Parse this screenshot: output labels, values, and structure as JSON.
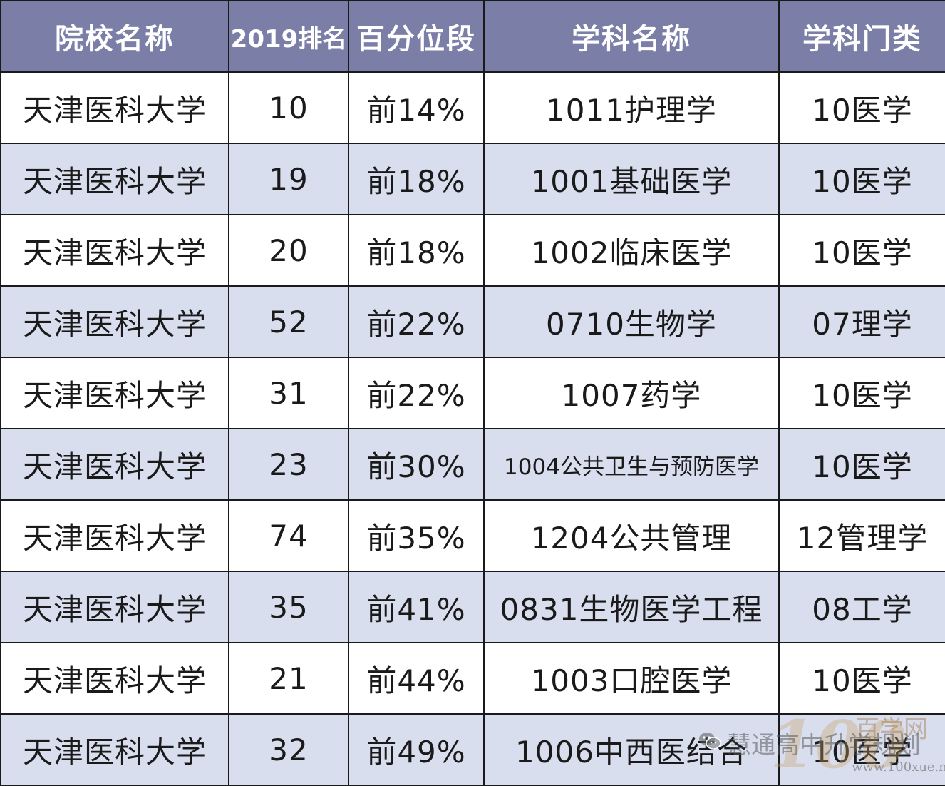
{
  "table": {
    "headers": [
      "院校名称",
      "2019排名",
      "百分位段",
      "学科名称",
      "学科门类"
    ],
    "rows": [
      [
        "天津医科大学",
        "10",
        "前14%",
        "1011护理学",
        "10医学"
      ],
      [
        "天津医科大学",
        "19",
        "前18%",
        "1001基础医学",
        "10医学"
      ],
      [
        "天津医科大学",
        "20",
        "前18%",
        "1002临床医学",
        "10医学"
      ],
      [
        "天津医科大学",
        "52",
        "前22%",
        "0710生物学",
        "07理学"
      ],
      [
        "天津医科大学",
        "31",
        "前22%",
        "1007药学",
        "10医学"
      ],
      [
        "天津医科大学",
        "23",
        "前30%",
        "1004公共卫生与预防医学",
        "10医学"
      ],
      [
        "天津医科大学",
        "74",
        "前35%",
        "1204公共管理",
        "12管理学"
      ],
      [
        "天津医科大学",
        "35",
        "前41%",
        "0831生物医学工程",
        "08工学"
      ],
      [
        "天津医科大学",
        "21",
        "前44%",
        "1003口腔医学",
        "10医学"
      ],
      [
        "天津医科大学",
        "32",
        "前49%",
        "1006中西医结合",
        "10医学"
      ]
    ]
  },
  "watermark": {
    "account": "慧通高中升学规划",
    "logo_number": "100",
    "logo_text": "百学网",
    "url": "www.100xue.net",
    "icon": "wechat-icon"
  }
}
